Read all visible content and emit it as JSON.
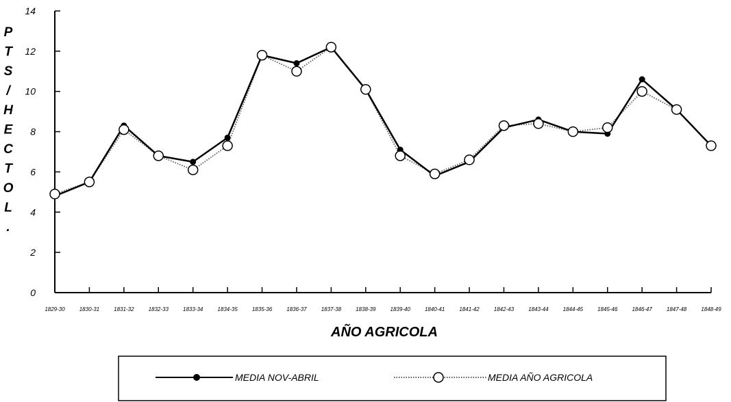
{
  "chart_data": {
    "type": "line",
    "title": "",
    "xlabel": "AÑO AGRICOLA",
    "ylabel_letters": [
      "P",
      "T",
      "S",
      "/",
      "H",
      "E",
      "C",
      "T",
      "O",
      "L",
      "."
    ],
    "ylim": [
      0,
      14
    ],
    "yticks": [
      0,
      2,
      4,
      6,
      8,
      10,
      12,
      14
    ],
    "grid": false,
    "legend_position": "bottom",
    "categories": [
      "1829-30",
      "1830-31",
      "1831-32",
      "1832-33",
      "1833-34",
      "1834-35",
      "1835-36",
      "1836-37",
      "1837-38",
      "1838-39",
      "1839-40",
      "1840-41",
      "1841-42",
      "1842-43",
      "1843-44",
      "1844-45",
      "1845-46",
      "1846-47",
      "1847-48",
      "1848-49"
    ],
    "series": [
      {
        "name": "MEDIA NOV-ABRIL",
        "values": [
          4.8,
          5.5,
          8.3,
          6.8,
          6.5,
          7.7,
          11.8,
          11.4,
          12.2,
          10.1,
          7.1,
          5.8,
          6.5,
          8.2,
          8.6,
          8.0,
          7.9,
          10.6,
          9.1,
          7.3
        ],
        "line_color": "#000000",
        "line_style": "solid",
        "marker": "filled-dot"
      },
      {
        "name": "MEDIA AÑO AGRICOLA",
        "values": [
          4.9,
          5.5,
          8.1,
          6.8,
          6.1,
          7.3,
          11.8,
          11.0,
          12.2,
          10.1,
          6.8,
          5.9,
          6.6,
          8.3,
          8.4,
          8.0,
          8.2,
          10.0,
          9.1,
          7.3
        ],
        "line_color": "#666666",
        "line_style": "dotted",
        "marker": "open-circle"
      }
    ]
  }
}
